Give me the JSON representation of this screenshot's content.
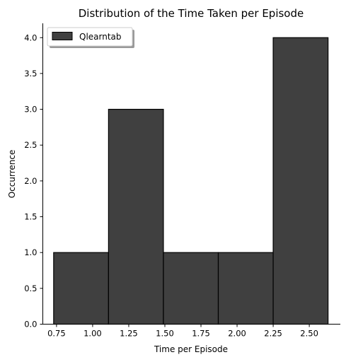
{
  "chart_data": {
    "type": "bar",
    "title": "Distribution of the Time Taken per Episode",
    "xlabel": "Time per Episode",
    "ylabel": "Occurrence",
    "xlim": [
      0.655,
      2.715
    ],
    "ylim": [
      0,
      4.2
    ],
    "x_ticks": [
      0.75,
      1.0,
      1.25,
      1.5,
      1.75,
      2.0,
      2.25,
      2.5
    ],
    "x_tick_labels": [
      "0.75",
      "1.00",
      "1.25",
      "1.50",
      "1.75",
      "2.00",
      "2.25",
      "2.50"
    ],
    "y_ticks": [
      0.0,
      0.5,
      1.0,
      1.5,
      2.0,
      2.5,
      3.0,
      3.5,
      4.0
    ],
    "y_tick_labels": [
      "0.0",
      "0.5",
      "1.0",
      "1.5",
      "2.0",
      "2.5",
      "3.0",
      "3.5",
      "4.0"
    ],
    "bins": [
      {
        "x0": 0.73,
        "x1": 1.11,
        "count": 1
      },
      {
        "x0": 1.11,
        "x1": 1.49,
        "count": 3
      },
      {
        "x0": 1.49,
        "x1": 1.87,
        "count": 1
      },
      {
        "x0": 1.87,
        "x1": 2.25,
        "count": 1
      },
      {
        "x0": 2.25,
        "x1": 2.63,
        "count": 4
      }
    ],
    "series": [
      {
        "name": "Qlearntab",
        "color": "#404040"
      }
    ],
    "legend": {
      "position": "top-left"
    },
    "grid": false
  }
}
